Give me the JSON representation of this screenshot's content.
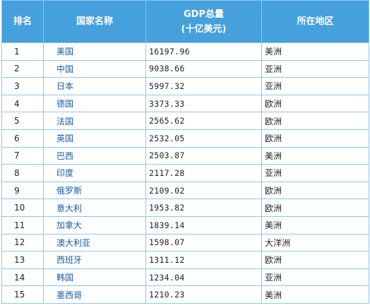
{
  "table": {
    "headers": {
      "rank": "排名",
      "country": "国家名称",
      "gdp_line1": "GDP总量",
      "gdp_line2": "(十亿美元)",
      "region": "所在地区"
    },
    "rows": [
      {
        "rank": "1",
        "country": "美国",
        "gdp": "16197.96",
        "region": "美洲"
      },
      {
        "rank": "2",
        "country": "中国",
        "gdp": "9038.66",
        "region": "亚洲"
      },
      {
        "rank": "3",
        "country": "日本",
        "gdp": "5997.32",
        "region": "亚洲"
      },
      {
        "rank": "4",
        "country": "德国",
        "gdp": "3373.33",
        "region": "欧洲"
      },
      {
        "rank": "5",
        "country": "法国",
        "gdp": "2565.62",
        "region": "欧洲"
      },
      {
        "rank": "6",
        "country": "英国",
        "gdp": "2532.05",
        "region": "欧洲"
      },
      {
        "rank": "7",
        "country": "巴西",
        "gdp": "2503.87",
        "region": "美洲"
      },
      {
        "rank": "8",
        "country": "印度",
        "gdp": "2117.28",
        "region": "亚洲"
      },
      {
        "rank": "9",
        "country": "俄罗斯",
        "gdp": "2109.02",
        "region": "欧洲"
      },
      {
        "rank": "10",
        "country": "意大利",
        "gdp": "1953.82",
        "region": "欧洲"
      },
      {
        "rank": "11",
        "country": "加拿大",
        "gdp": "1839.14",
        "region": "美洲"
      },
      {
        "rank": "12",
        "country": "澳大利亚",
        "gdp": "1598.07",
        "region": "大洋洲"
      },
      {
        "rank": "13",
        "country": "西班牙",
        "gdp": "1311.12",
        "region": "欧洲"
      },
      {
        "rank": "14",
        "country": "韩国",
        "gdp": "1234.04",
        "region": "亚洲"
      },
      {
        "rank": "15",
        "country": "墨西哥",
        "gdp": "1210.23",
        "region": "美洲"
      }
    ]
  },
  "colors": {
    "header_bg": "#46a0dc",
    "border": "#8fc6ea",
    "link_text": "#1a5aa8"
  }
}
